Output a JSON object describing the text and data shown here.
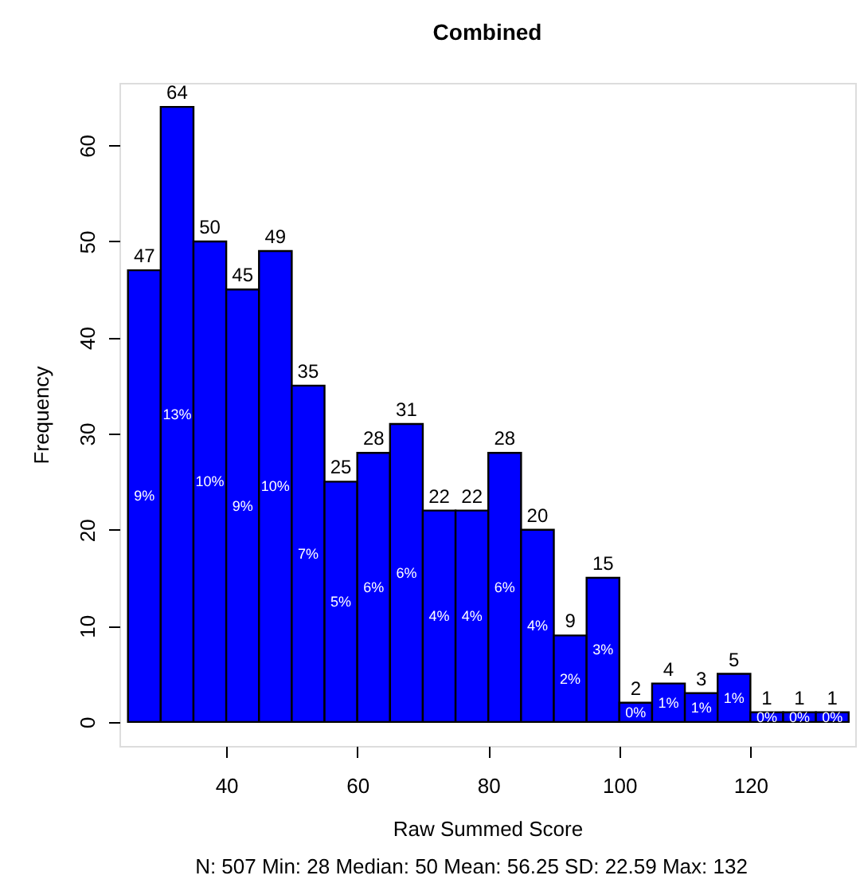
{
  "chart_data": {
    "type": "histogram",
    "title": "Combined",
    "xlabel": "Raw Summed Score",
    "ylabel": "Frequency",
    "annotations": [
      "N: 507 Min: 28  Median: 50  Mean: 56.25  SD: 22.59  Max: 132",
      "9%",
      "13%",
      "10%",
      "9%",
      "10%",
      "7%",
      "5%",
      "6%",
      "6%",
      "4%",
      "4%",
      "6%",
      "4%",
      "2%",
      "3%",
      "0%",
      "1%",
      "1%",
      "1%",
      "0%",
      "0%",
      "0%"
    ],
    "bins": [
      25,
      30,
      35,
      40,
      45,
      50,
      55,
      60,
      65,
      70,
      75,
      80,
      85,
      90,
      95,
      100,
      105,
      110,
      115,
      120,
      125,
      130,
      135
    ],
    "values": [
      47,
      64,
      50,
      45,
      49,
      35,
      25,
      28,
      31,
      22,
      22,
      28,
      20,
      9,
      15,
      2,
      4,
      3,
      5,
      1,
      1,
      1
    ],
    "data_labels": true,
    "color": "#0000ff",
    "xlim": [
      23.7,
      136
    ],
    "xticks": [
      40,
      60,
      80,
      100,
      120
    ],
    "ylim": [
      -2.5,
      66.5
    ],
    "yticks": [
      0,
      10,
      20,
      30,
      40,
      50,
      60
    ],
    "grid": false
  }
}
